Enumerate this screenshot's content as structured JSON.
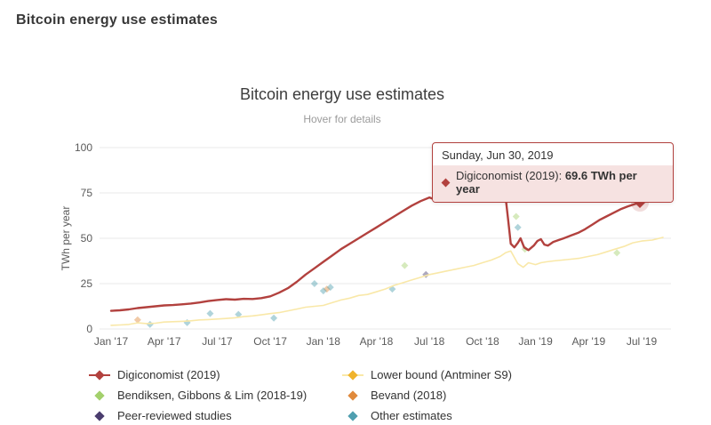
{
  "page": {
    "title": "Bitcoin energy use estimates"
  },
  "chart": {
    "title": "Bitcoin energy use estimates",
    "subtitle": "Hover for details"
  },
  "tooltip": {
    "date": "Sunday, Jun 30, 2019",
    "series_label": "Digiconomist (2019): ",
    "value": "69.6 TWh per year"
  },
  "chart_data": {
    "type": "line",
    "title": "Bitcoin energy use estimates",
    "subtitle": "Hover for details",
    "ylabel": "TWh per year",
    "ylim": [
      0,
      100
    ],
    "y_ticks": [
      0,
      25,
      50,
      75,
      100
    ],
    "x_ticks": [
      "Jan '17",
      "Apr '17",
      "Jul '17",
      "Oct '17",
      "Jan '18",
      "Apr '18",
      "Jul '18",
      "Oct '18",
      "Jan '19",
      "Apr '19",
      "Jul '19"
    ],
    "x_axis": {
      "unit": "month index from Jan 2017",
      "tick_positions": [
        0,
        3,
        6,
        9,
        12,
        15,
        18,
        21,
        24,
        27,
        30
      ]
    },
    "grid": "horizontal",
    "legend_position": "bottom",
    "series": [
      {
        "name": "Digiconomist (2019)",
        "type": "line",
        "color": "#b2413e",
        "width": 2.4,
        "points": [
          [
            0,
            10
          ],
          [
            0.5,
            10.3
          ],
          [
            1,
            10.8
          ],
          [
            1.5,
            11.5
          ],
          [
            2,
            12
          ],
          [
            2.5,
            12.5
          ],
          [
            3,
            13
          ],
          [
            3.5,
            13.2
          ],
          [
            4,
            13.6
          ],
          [
            4.5,
            14
          ],
          [
            5,
            14.6
          ],
          [
            5.5,
            15.4
          ],
          [
            6,
            16
          ],
          [
            6.5,
            16.4
          ],
          [
            7,
            16.2
          ],
          [
            7.5,
            16.6
          ],
          [
            8,
            16.5
          ],
          [
            8.5,
            17
          ],
          [
            9,
            18
          ],
          [
            9.5,
            20
          ],
          [
            10,
            22.5
          ],
          [
            10.5,
            26
          ],
          [
            11,
            30
          ],
          [
            11.5,
            33.5
          ],
          [
            12,
            37
          ],
          [
            12.5,
            40.5
          ],
          [
            13,
            44
          ],
          [
            13.5,
            47
          ],
          [
            14,
            50
          ],
          [
            14.5,
            53
          ],
          [
            15,
            56
          ],
          [
            15.5,
            59
          ],
          [
            16,
            62
          ],
          [
            16.5,
            65
          ],
          [
            17,
            68
          ],
          [
            17.5,
            70.5
          ],
          [
            18,
            72.5
          ],
          [
            18.4,
            71
          ],
          [
            18.8,
            73
          ],
          [
            19.5,
            73
          ],
          [
            20.5,
            73
          ],
          [
            21.5,
            73
          ],
          [
            22.3,
            73
          ],
          [
            22.45,
            60
          ],
          [
            22.6,
            47
          ],
          [
            22.8,
            45
          ],
          [
            23,
            47.5
          ],
          [
            23.15,
            50
          ],
          [
            23.35,
            45
          ],
          [
            23.6,
            43.5
          ],
          [
            23.9,
            46
          ],
          [
            24.1,
            48.5
          ],
          [
            24.3,
            49.5
          ],
          [
            24.5,
            46.5
          ],
          [
            24.7,
            46
          ],
          [
            25,
            48
          ],
          [
            25.3,
            49
          ],
          [
            25.6,
            50
          ],
          [
            26,
            51.5
          ],
          [
            26.4,
            53
          ],
          [
            26.8,
            55
          ],
          [
            27.2,
            57.5
          ],
          [
            27.6,
            60
          ],
          [
            28,
            62
          ],
          [
            28.4,
            64
          ],
          [
            28.8,
            66
          ],
          [
            29.2,
            67.5
          ],
          [
            29.6,
            68.8
          ],
          [
            29.9,
            69.6
          ]
        ]
      },
      {
        "name": "Lower bound (Antminer S9)",
        "type": "line",
        "color": "#f0b32c",
        "line_color": "#f9e8a8",
        "width": 1.6,
        "points": [
          [
            0,
            2
          ],
          [
            0.5,
            2.2
          ],
          [
            1,
            2.5
          ],
          [
            1.5,
            3.4
          ],
          [
            2,
            3
          ],
          [
            2.5,
            3.2
          ],
          [
            3,
            3.8
          ],
          [
            3.5,
            4
          ],
          [
            4,
            4.2
          ],
          [
            4.5,
            4.5
          ],
          [
            5,
            5
          ],
          [
            5.5,
            5.2
          ],
          [
            6,
            5.5
          ],
          [
            6.5,
            5.8
          ],
          [
            7,
            6.2
          ],
          [
            7.5,
            6.8
          ],
          [
            8,
            7.2
          ],
          [
            8.5,
            7.8
          ],
          [
            9,
            8.5
          ],
          [
            9.5,
            9
          ],
          [
            10,
            10
          ],
          [
            10.5,
            11
          ],
          [
            11,
            12
          ],
          [
            11.5,
            12.5
          ],
          [
            12,
            13
          ],
          [
            12.5,
            14.5
          ],
          [
            13,
            16
          ],
          [
            13.5,
            17
          ],
          [
            14,
            18.5
          ],
          [
            14.5,
            19
          ],
          [
            15,
            20.5
          ],
          [
            15.5,
            22
          ],
          [
            16,
            24
          ],
          [
            16.5,
            25.5
          ],
          [
            17,
            27
          ],
          [
            17.5,
            28.5
          ],
          [
            18,
            30
          ],
          [
            18.5,
            31
          ],
          [
            19,
            32
          ],
          [
            19.5,
            33
          ],
          [
            20,
            34
          ],
          [
            20.5,
            35
          ],
          [
            21,
            36.5
          ],
          [
            21.5,
            38
          ],
          [
            22,
            40
          ],
          [
            22.3,
            42
          ],
          [
            22.6,
            43
          ],
          [
            23,
            36
          ],
          [
            23.3,
            34
          ],
          [
            23.6,
            36.5
          ],
          [
            24,
            35.5
          ],
          [
            24.3,
            36.5
          ],
          [
            24.6,
            37
          ],
          [
            25,
            37.5
          ],
          [
            25.5,
            38
          ],
          [
            26,
            38.5
          ],
          [
            26.5,
            39
          ],
          [
            27,
            40
          ],
          [
            27.5,
            41
          ],
          [
            28,
            42.5
          ],
          [
            28.5,
            44
          ],
          [
            29,
            45.5
          ],
          [
            29.5,
            47.5
          ],
          [
            30,
            48.5
          ],
          [
            30.6,
            49
          ],
          [
            31.2,
            50.5
          ]
        ]
      },
      {
        "name": "Bendiksen, Gibbons & Lim (2018-19)",
        "type": "scatter",
        "color": "#a3d06c",
        "points": [
          [
            16.6,
            35
          ],
          [
            22.9,
            62
          ],
          [
            23.4,
            44
          ],
          [
            28.6,
            42
          ]
        ]
      },
      {
        "name": "Bevand (2018)",
        "type": "scatter",
        "color": "#e08a3c",
        "points": [
          [
            1.5,
            5
          ],
          [
            12.2,
            22
          ]
        ]
      },
      {
        "name": "Peer-reviewed studies",
        "type": "scatter",
        "color": "#4a3d6e",
        "points": [
          [
            17.8,
            30
          ]
        ]
      },
      {
        "name": "Other estimates",
        "type": "scatter",
        "color": "#4f9fb0",
        "points": [
          [
            2.2,
            2.5
          ],
          [
            4.3,
            3.5
          ],
          [
            5.6,
            8.5
          ],
          [
            7.2,
            8
          ],
          [
            9.2,
            6
          ],
          [
            11.5,
            25
          ],
          [
            12,
            21
          ],
          [
            12.4,
            23
          ],
          [
            15.9,
            22
          ],
          [
            23,
            56
          ]
        ]
      }
    ],
    "highlight": {
      "series": "Digiconomist (2019)",
      "x": 29.9,
      "y": 69.6,
      "label": "69.6 TWh per year",
      "date": "Sunday, Jun 30, 2019"
    }
  },
  "legend": {
    "items": [
      {
        "label": "Digiconomist (2019)",
        "marker": "line-diamond",
        "color": "#b2413e",
        "line_color": "#b2413e"
      },
      {
        "label": "Lower bound (Antminer S9)",
        "marker": "line-diamond",
        "color": "#f0b32c",
        "line_color": "#f9e8a8"
      },
      {
        "label": "Bendiksen, Gibbons & Lim (2018-19)",
        "marker": "diamond",
        "color": "#a3d06c"
      },
      {
        "label": "Bevand (2018)",
        "marker": "diamond",
        "color": "#e08a3c"
      },
      {
        "label": "Peer-reviewed studies",
        "marker": "diamond",
        "color": "#4a3d6e"
      },
      {
        "label": "Other estimates",
        "marker": "diamond",
        "color": "#4f9fb0"
      }
    ]
  }
}
